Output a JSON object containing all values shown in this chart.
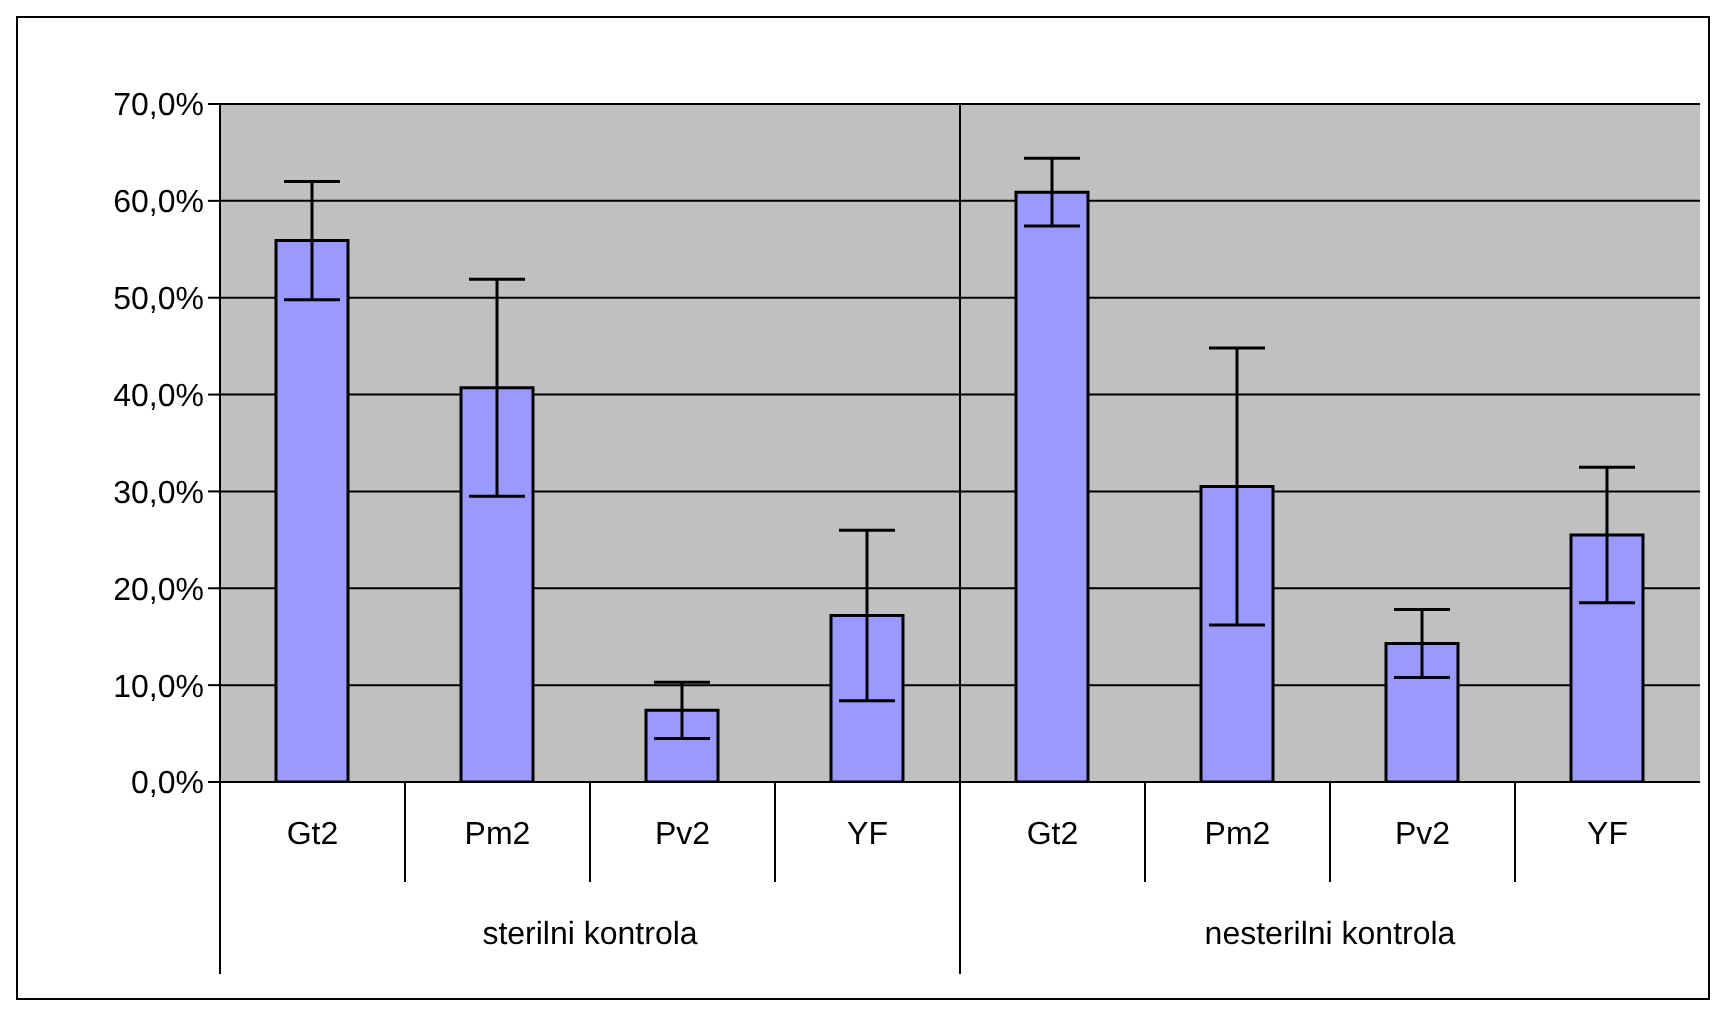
{
  "chart_data": {
    "type": "bar",
    "categories": [
      "Gt2",
      "Pm2",
      "Pv2",
      "YF",
      "Gt2",
      "Pm2",
      "Pv2",
      "YF"
    ],
    "values": [
      55.9,
      40.7,
      7.4,
      17.2,
      60.9,
      30.5,
      14.3,
      25.5
    ],
    "errors": [
      6.1,
      11.2,
      2.9,
      8.8,
      3.5,
      14.3,
      3.5,
      7.0
    ],
    "color": "#9999ff",
    "ylim": [
      0,
      70
    ],
    "yticks": [
      {
        "value": 0,
        "label": "0,0%"
      },
      {
        "value": 10,
        "label": "10,0%"
      },
      {
        "value": 20,
        "label": "20,0%"
      },
      {
        "value": 30,
        "label": "30,0%"
      },
      {
        "value": 40,
        "label": "40,0%"
      },
      {
        "value": 50,
        "label": "50,0%"
      },
      {
        "value": 60,
        "label": "60,0%"
      },
      {
        "value": 70,
        "label": "70,0%"
      }
    ],
    "annotations": [
      "sterilni kontrola",
      "nesterilni kontrola"
    ],
    "grid": "y",
    "legend": false
  }
}
